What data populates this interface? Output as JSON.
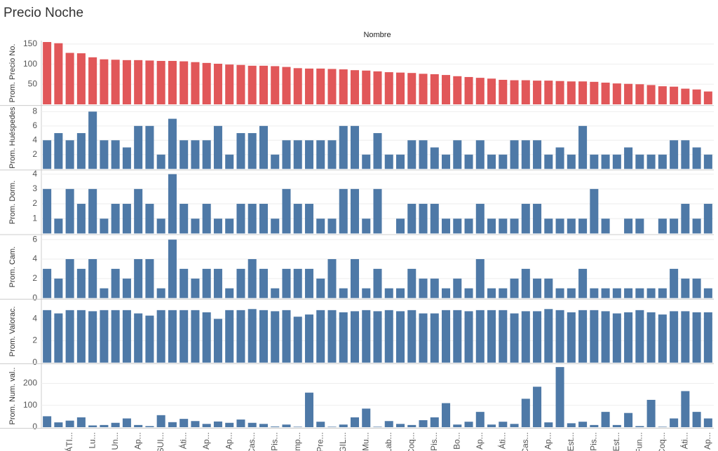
{
  "chart_data": {
    "type": "bar",
    "title": "Precio Noche",
    "x_label": "Nombre",
    "categories": [
      null,
      null,
      "ÁTI...",
      null,
      "Lu...",
      null,
      "Un...",
      null,
      "Ap...",
      null,
      "SUI...",
      null,
      "Áti...",
      null,
      "Ap...",
      null,
      "Ap...",
      null,
      "Cas...",
      null,
      "Pis...",
      null,
      "Imp...",
      null,
      "Pre...",
      null,
      "GIL...",
      null,
      "Mu...",
      null,
      "Lab...",
      null,
      "Coq...",
      null,
      "Pis...",
      null,
      "Bo...",
      null,
      "Ap...",
      null,
      "Áti...",
      null,
      "Cas...",
      null,
      "Ap...",
      null,
      "Est...",
      null,
      "Pis...",
      null,
      "Est...",
      null,
      "Fun...",
      null,
      "Coq...",
      null,
      "Áti...",
      null,
      "Ap..."
    ],
    "panels": [
      {
        "y_label": "Prom. Precio No.",
        "color": "#e15759",
        "ylim": [
          0,
          155
        ],
        "yticks": [
          50,
          100,
          150
        ],
        "values": [
          155,
          152,
          128,
          127,
          117,
          112,
          111,
          110,
          110,
          109,
          108,
          108,
          107,
          105,
          103,
          101,
          99,
          98,
          96,
          96,
          95,
          93,
          90,
          89,
          89,
          88,
          87,
          85,
          84,
          82,
          80,
          79,
          78,
          76,
          75,
          73,
          70,
          68,
          66,
          64,
          61,
          60,
          60,
          59,
          59,
          58,
          57,
          57,
          56,
          54,
          52,
          51,
          50,
          48,
          45,
          44,
          39,
          37,
          32
        ]
      },
      {
        "y_label": "Prom. Huéspedes",
        "color": "#4e79a7",
        "ylim": [
          0,
          8.7
        ],
        "yticks": [
          2,
          4,
          6,
          8
        ],
        "values": [
          4,
          5,
          4,
          5,
          8,
          4,
          4,
          3,
          6,
          6,
          2,
          7,
          4,
          4,
          4,
          6,
          2,
          5,
          5,
          6,
          2,
          4,
          4,
          4,
          4,
          4,
          6,
          6,
          2,
          5,
          2,
          2,
          4,
          4,
          3,
          2,
          4,
          2,
          4,
          2,
          2,
          4,
          4,
          4,
          2,
          3,
          2,
          6,
          2,
          2,
          2,
          3,
          2,
          2,
          2,
          4,
          4,
          3,
          2
        ]
      },
      {
        "y_label": "Prom. Dorm.",
        "color": "#4e79a7",
        "ylim": [
          0,
          4.2
        ],
        "yticks": [
          1,
          2,
          3,
          4
        ],
        "values": [
          3,
          1,
          3,
          2,
          3,
          1,
          2,
          2,
          3,
          2,
          1,
          4,
          2,
          1,
          2,
          1,
          1,
          2,
          2,
          2,
          1,
          3,
          2,
          2,
          1,
          1,
          3,
          3,
          1,
          3,
          0,
          1,
          2,
          2,
          2,
          1,
          1,
          1,
          2,
          1,
          1,
          1,
          2,
          2,
          1,
          1,
          1,
          1,
          3,
          1,
          0,
          1,
          1,
          0,
          1,
          1,
          2,
          1,
          2
        ]
      },
      {
        "y_label": "Prom. Cam.",
        "color": "#4e79a7",
        "ylim": [
          0,
          6.4
        ],
        "yticks": [
          0,
          2,
          4,
          6
        ],
        "values": [
          3,
          2,
          4,
          3,
          4,
          1,
          3,
          2,
          4,
          4,
          1,
          6,
          3,
          2,
          3,
          3,
          1,
          3,
          4,
          3,
          1,
          3,
          3,
          3,
          2,
          4,
          1,
          4,
          1,
          3,
          1,
          1,
          3,
          2,
          2,
          1,
          2,
          1,
          4,
          1,
          1,
          2,
          3,
          2,
          2,
          1,
          1,
          3,
          1,
          1,
          1,
          1,
          1,
          1,
          1,
          3,
          2,
          2,
          1
        ]
      },
      {
        "y_label": "Prom. Valorac.",
        "color": "#4e79a7",
        "ylim": [
          0,
          5.7
        ],
        "yticks": [
          0,
          2,
          4
        ],
        "values": [
          4.8,
          4.5,
          4.8,
          4.8,
          4.7,
          4.8,
          4.8,
          4.8,
          4.5,
          4.3,
          4.8,
          4.8,
          4.8,
          4.8,
          4.6,
          4.0,
          4.8,
          4.8,
          4.9,
          4.8,
          4.7,
          4.8,
          4.2,
          4.4,
          4.8,
          4.8,
          4.6,
          4.7,
          4.8,
          4.7,
          4.8,
          4.7,
          4.8,
          4.5,
          4.5,
          4.8,
          4.8,
          4.7,
          4.8,
          4.8,
          4.8,
          4.5,
          4.7,
          4.7,
          4.9,
          4.8,
          4.6,
          4.8,
          4.8,
          4.7,
          4.5,
          4.6,
          4.8,
          4.6,
          4.4,
          4.7,
          4.7,
          4.6,
          4.6
        ]
      },
      {
        "y_label": "Prom. Num. val..",
        "color": "#4e79a7",
        "ylim": [
          0,
          285
        ],
        "yticks": [
          0,
          100,
          200
        ],
        "values": [
          50,
          22,
          30,
          45,
          8,
          10,
          20,
          40,
          10,
          5,
          55,
          23,
          38,
          28,
          15,
          26,
          20,
          35,
          20,
          15,
          3,
          12,
          2,
          158,
          25,
          2,
          12,
          45,
          85,
          2,
          28,
          15,
          10,
          32,
          45,
          110,
          12,
          25,
          70,
          12,
          25,
          15,
          130,
          185,
          22,
          275,
          18,
          25,
          10,
          70,
          10,
          65,
          5,
          125,
          2,
          40,
          165,
          70,
          40
        ]
      }
    ]
  }
}
